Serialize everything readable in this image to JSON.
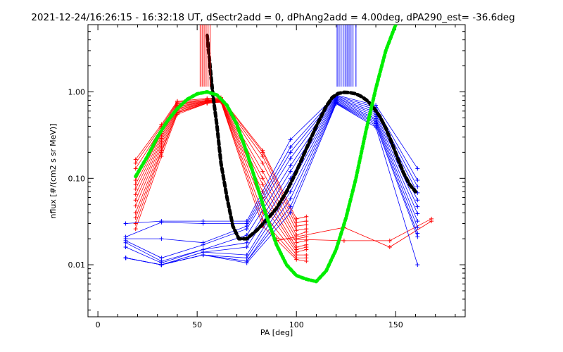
{
  "chart_data": {
    "type": "scatter",
    "title": "2021-12-24/16:26:15 - 16:32:18 UT, dSectr2add = 0, dPhAng2add = 4.00deg, dPA290_est= -36.6deg",
    "xlabel": "PA [deg]",
    "ylabel": "nflux [#/(cm2 s sr MeV)]",
    "xlim": [
      -5,
      185
    ],
    "ylim": [
      0.0025,
      6.0
    ],
    "yscale": "log",
    "grid": false,
    "xticks": [
      0,
      50,
      100,
      150
    ],
    "xtick_labels": [
      "0",
      "50",
      "100",
      "150"
    ],
    "yticks": [
      0.01,
      0.1,
      1.0
    ],
    "ytick_labels": [
      "0.01",
      "0.10",
      "1.00"
    ],
    "colors": {
      "red": "#ff0000",
      "blue": "#0000ff",
      "fit_black": "#000000",
      "fit_green": "#00ee00"
    },
    "red_pa_markers": [
      51.5,
      52.5,
      53.5,
      54.5,
      55.5,
      56.5
    ],
    "blue_pa_markers": [
      120.5,
      121.5,
      122.5,
      123.5,
      124.5,
      125.5,
      126.5,
      127.5,
      128.5,
      130.0
    ],
    "series": [
      {
        "color": "red",
        "pa": [
          19,
          32,
          40,
          55,
          62,
          83,
          100,
          105
        ],
        "nflux": [
          [
            0.165,
            0.42,
            0.78,
            0.84,
            0.86,
            0.21,
            0.034,
            0.036
          ],
          [
            0.15,
            0.4,
            0.76,
            0.82,
            0.84,
            0.2,
            0.031,
            0.032
          ],
          [
            0.13,
            0.38,
            0.74,
            0.8,
            0.82,
            0.18,
            0.028,
            0.029
          ],
          [
            0.095,
            0.35,
            0.72,
            0.8,
            0.83,
            0.15,
            0.025,
            0.026
          ],
          [
            0.085,
            0.33,
            0.7,
            0.79,
            0.81,
            0.12,
            0.022,
            0.024
          ],
          [
            0.075,
            0.31,
            0.68,
            0.78,
            0.8,
            0.1,
            0.02,
            0.021
          ],
          [
            0.065,
            0.29,
            0.66,
            0.78,
            0.79,
            0.085,
            0.018,
            0.019
          ],
          [
            0.056,
            0.27,
            0.64,
            0.77,
            0.79,
            0.07,
            0.016,
            0.017
          ],
          [
            0.048,
            0.25,
            0.62,
            0.76,
            0.78,
            0.06,
            0.015,
            0.016
          ],
          [
            0.04,
            0.23,
            0.6,
            0.76,
            0.78,
            0.05,
            0.014,
            0.015
          ],
          [
            0.035,
            0.21,
            0.58,
            0.75,
            0.77,
            0.04,
            0.013,
            0.013
          ],
          [
            0.03,
            0.2,
            0.57,
            0.74,
            0.77,
            0.033,
            0.012,
            0.012
          ],
          [
            0.026,
            0.18,
            0.55,
            0.74,
            0.76,
            0.028,
            0.0115,
            0.011
          ]
        ]
      },
      {
        "color": "red",
        "pa": [
          90,
          124,
          147,
          168
        ],
        "nflux": [
          [
            0.02,
            0.019,
            0.019,
            0.034
          ],
          [
            0.019,
            0.027,
            0.016,
            0.032
          ]
        ]
      },
      {
        "color": "blue",
        "pa": [
          14,
          32,
          53,
          75,
          97,
          120,
          140,
          161
        ],
        "nflux": [
          [
            0.03,
            0.032,
            0.032,
            0.032,
            0.28,
            0.92,
            0.7,
            0.13
          ],
          [
            0.021,
            0.031,
            0.03,
            0.03,
            0.23,
            0.9,
            0.66,
            0.095
          ],
          [
            0.02,
            0.02,
            0.018,
            0.028,
            0.2,
            0.88,
            0.62,
            0.08
          ],
          [
            0.019,
            0.012,
            0.017,
            0.026,
            0.17,
            0.86,
            0.58,
            0.068
          ],
          [
            0.018,
            0.011,
            0.015,
            0.022,
            0.14,
            0.84,
            0.55,
            0.056
          ],
          [
            0.016,
            0.0105,
            0.015,
            0.018,
            0.12,
            0.82,
            0.52,
            0.047
          ],
          [
            0.012,
            0.01,
            0.014,
            0.016,
            0.1,
            0.8,
            0.49,
            0.039
          ],
          [
            0.012,
            0.01,
            0.014,
            0.013,
            0.085,
            0.78,
            0.47,
            0.032
          ],
          [
            0.012,
            0.01,
            0.013,
            0.012,
            0.07,
            0.76,
            0.45,
            0.027
          ],
          [
            0.012,
            0.01,
            0.013,
            0.011,
            0.058,
            0.75,
            0.43,
            0.023
          ],
          [
            0.012,
            0.01,
            0.013,
            0.011,
            0.047,
            0.74,
            0.41,
            0.021
          ],
          [
            0.012,
            0.01,
            0.013,
            0.0105,
            0.04,
            0.73,
            0.39,
            0.01
          ]
        ]
      },
      {
        "color": "fit_black",
        "style": "dashed",
        "pa": [
          55,
          57,
          58,
          60,
          62,
          65,
          68,
          71,
          75,
          80,
          85,
          90,
          95,
          100,
          105,
          110,
          115,
          118,
          121,
          124,
          127,
          130,
          133,
          136,
          139,
          142,
          145,
          148,
          151,
          154,
          157,
          160
        ],
        "nflux": [
          4.5,
          1.5,
          0.9,
          0.4,
          0.15,
          0.06,
          0.028,
          0.02,
          0.02,
          0.025,
          0.033,
          0.045,
          0.07,
          0.12,
          0.22,
          0.4,
          0.68,
          0.86,
          0.96,
          0.99,
          0.98,
          0.95,
          0.88,
          0.78,
          0.65,
          0.52,
          0.38,
          0.26,
          0.17,
          0.115,
          0.085,
          0.07
        ]
      },
      {
        "color": "fit_green",
        "style": "dotted",
        "pa": [
          19,
          25,
          30,
          35,
          40,
          45,
          50,
          55,
          60,
          65,
          70,
          75,
          80,
          85,
          90,
          95,
          100,
          105,
          110,
          115,
          120,
          125,
          130,
          135,
          140,
          145,
          150
        ],
        "nflux": [
          0.105,
          0.18,
          0.3,
          0.46,
          0.64,
          0.82,
          0.95,
          1.0,
          0.92,
          0.7,
          0.42,
          0.2,
          0.085,
          0.036,
          0.017,
          0.01,
          0.0075,
          0.0068,
          0.0064,
          0.0085,
          0.015,
          0.035,
          0.1,
          0.35,
          1.1,
          3.0,
          6.0
        ]
      }
    ]
  }
}
